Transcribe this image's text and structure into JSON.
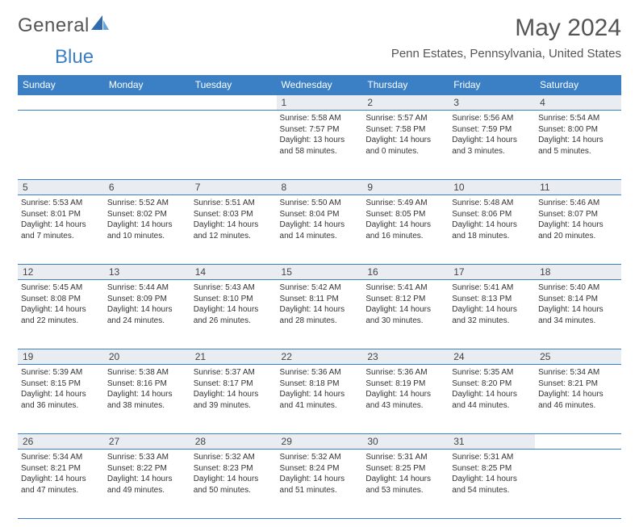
{
  "brand": {
    "name1": "General",
    "name2": "Blue"
  },
  "title": "May 2024",
  "location": "Penn Estates, Pennsylvania, United States",
  "colors": {
    "accent": "#3b7fc4",
    "row_bg": "#e9edf1",
    "text": "#333333"
  },
  "day_headers": [
    "Sunday",
    "Monday",
    "Tuesday",
    "Wednesday",
    "Thursday",
    "Friday",
    "Saturday"
  ],
  "weeks": [
    [
      null,
      null,
      null,
      {
        "n": "1",
        "sr": "Sunrise: 5:58 AM",
        "ss": "Sunset: 7:57 PM",
        "dl": "Daylight: 13 hours and 58 minutes."
      },
      {
        "n": "2",
        "sr": "Sunrise: 5:57 AM",
        "ss": "Sunset: 7:58 PM",
        "dl": "Daylight: 14 hours and 0 minutes."
      },
      {
        "n": "3",
        "sr": "Sunrise: 5:56 AM",
        "ss": "Sunset: 7:59 PM",
        "dl": "Daylight: 14 hours and 3 minutes."
      },
      {
        "n": "4",
        "sr": "Sunrise: 5:54 AM",
        "ss": "Sunset: 8:00 PM",
        "dl": "Daylight: 14 hours and 5 minutes."
      }
    ],
    [
      {
        "n": "5",
        "sr": "Sunrise: 5:53 AM",
        "ss": "Sunset: 8:01 PM",
        "dl": "Daylight: 14 hours and 7 minutes."
      },
      {
        "n": "6",
        "sr": "Sunrise: 5:52 AM",
        "ss": "Sunset: 8:02 PM",
        "dl": "Daylight: 14 hours and 10 minutes."
      },
      {
        "n": "7",
        "sr": "Sunrise: 5:51 AM",
        "ss": "Sunset: 8:03 PM",
        "dl": "Daylight: 14 hours and 12 minutes."
      },
      {
        "n": "8",
        "sr": "Sunrise: 5:50 AM",
        "ss": "Sunset: 8:04 PM",
        "dl": "Daylight: 14 hours and 14 minutes."
      },
      {
        "n": "9",
        "sr": "Sunrise: 5:49 AM",
        "ss": "Sunset: 8:05 PM",
        "dl": "Daylight: 14 hours and 16 minutes."
      },
      {
        "n": "10",
        "sr": "Sunrise: 5:48 AM",
        "ss": "Sunset: 8:06 PM",
        "dl": "Daylight: 14 hours and 18 minutes."
      },
      {
        "n": "11",
        "sr": "Sunrise: 5:46 AM",
        "ss": "Sunset: 8:07 PM",
        "dl": "Daylight: 14 hours and 20 minutes."
      }
    ],
    [
      {
        "n": "12",
        "sr": "Sunrise: 5:45 AM",
        "ss": "Sunset: 8:08 PM",
        "dl": "Daylight: 14 hours and 22 minutes."
      },
      {
        "n": "13",
        "sr": "Sunrise: 5:44 AM",
        "ss": "Sunset: 8:09 PM",
        "dl": "Daylight: 14 hours and 24 minutes."
      },
      {
        "n": "14",
        "sr": "Sunrise: 5:43 AM",
        "ss": "Sunset: 8:10 PM",
        "dl": "Daylight: 14 hours and 26 minutes."
      },
      {
        "n": "15",
        "sr": "Sunrise: 5:42 AM",
        "ss": "Sunset: 8:11 PM",
        "dl": "Daylight: 14 hours and 28 minutes."
      },
      {
        "n": "16",
        "sr": "Sunrise: 5:41 AM",
        "ss": "Sunset: 8:12 PM",
        "dl": "Daylight: 14 hours and 30 minutes."
      },
      {
        "n": "17",
        "sr": "Sunrise: 5:41 AM",
        "ss": "Sunset: 8:13 PM",
        "dl": "Daylight: 14 hours and 32 minutes."
      },
      {
        "n": "18",
        "sr": "Sunrise: 5:40 AM",
        "ss": "Sunset: 8:14 PM",
        "dl": "Daylight: 14 hours and 34 minutes."
      }
    ],
    [
      {
        "n": "19",
        "sr": "Sunrise: 5:39 AM",
        "ss": "Sunset: 8:15 PM",
        "dl": "Daylight: 14 hours and 36 minutes."
      },
      {
        "n": "20",
        "sr": "Sunrise: 5:38 AM",
        "ss": "Sunset: 8:16 PM",
        "dl": "Daylight: 14 hours and 38 minutes."
      },
      {
        "n": "21",
        "sr": "Sunrise: 5:37 AM",
        "ss": "Sunset: 8:17 PM",
        "dl": "Daylight: 14 hours and 39 minutes."
      },
      {
        "n": "22",
        "sr": "Sunrise: 5:36 AM",
        "ss": "Sunset: 8:18 PM",
        "dl": "Daylight: 14 hours and 41 minutes."
      },
      {
        "n": "23",
        "sr": "Sunrise: 5:36 AM",
        "ss": "Sunset: 8:19 PM",
        "dl": "Daylight: 14 hours and 43 minutes."
      },
      {
        "n": "24",
        "sr": "Sunrise: 5:35 AM",
        "ss": "Sunset: 8:20 PM",
        "dl": "Daylight: 14 hours and 44 minutes."
      },
      {
        "n": "25",
        "sr": "Sunrise: 5:34 AM",
        "ss": "Sunset: 8:21 PM",
        "dl": "Daylight: 14 hours and 46 minutes."
      }
    ],
    [
      {
        "n": "26",
        "sr": "Sunrise: 5:34 AM",
        "ss": "Sunset: 8:21 PM",
        "dl": "Daylight: 14 hours and 47 minutes."
      },
      {
        "n": "27",
        "sr": "Sunrise: 5:33 AM",
        "ss": "Sunset: 8:22 PM",
        "dl": "Daylight: 14 hours and 49 minutes."
      },
      {
        "n": "28",
        "sr": "Sunrise: 5:32 AM",
        "ss": "Sunset: 8:23 PM",
        "dl": "Daylight: 14 hours and 50 minutes."
      },
      {
        "n": "29",
        "sr": "Sunrise: 5:32 AM",
        "ss": "Sunset: 8:24 PM",
        "dl": "Daylight: 14 hours and 51 minutes."
      },
      {
        "n": "30",
        "sr": "Sunrise: 5:31 AM",
        "ss": "Sunset: 8:25 PM",
        "dl": "Daylight: 14 hours and 53 minutes."
      },
      {
        "n": "31",
        "sr": "Sunrise: 5:31 AM",
        "ss": "Sunset: 8:25 PM",
        "dl": "Daylight: 14 hours and 54 minutes."
      },
      null
    ]
  ]
}
